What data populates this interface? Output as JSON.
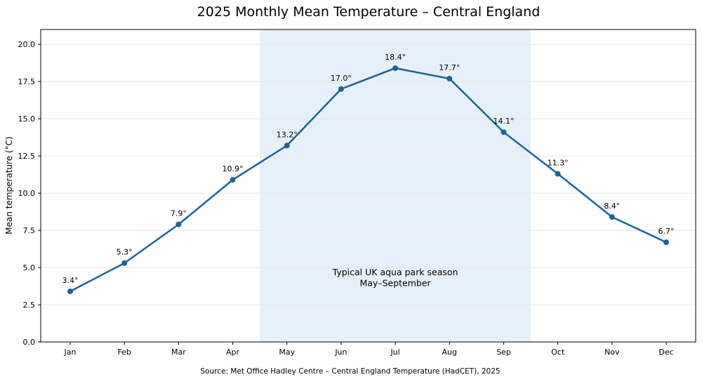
{
  "chart_data": {
    "type": "line",
    "title": "2025 Monthly Mean Temperature – Central England",
    "xlabel": "",
    "ylabel": "Mean temperature (°C)",
    "categories": [
      "Jan",
      "Feb",
      "Mar",
      "Apr",
      "May",
      "Jun",
      "Jul",
      "Aug",
      "Sep",
      "Oct",
      "Nov",
      "Dec"
    ],
    "values": [
      3.4,
      5.3,
      7.9,
      10.9,
      13.2,
      17.0,
      18.4,
      17.7,
      14.1,
      11.3,
      8.4,
      6.7
    ],
    "data_labels": [
      "3.4°",
      "5.3°",
      "7.9°",
      "10.9°",
      "13.2°",
      "17.0°",
      "18.4°",
      "17.7°",
      "14.1°",
      "11.3°",
      "8.4°",
      "6.7°"
    ],
    "ylim": [
      0,
      21
    ],
    "yticks": [
      0,
      2.5,
      5,
      7.5,
      10,
      12.5,
      15,
      17.5,
      20
    ],
    "ytick_labels": [
      "0.0",
      "2.5",
      "5.0",
      "7.5",
      "10.0",
      "12.5",
      "15.0",
      "17.5",
      "20.0"
    ],
    "grid": "horizontal",
    "line_color": "#1f6391",
    "highlight": {
      "from": "May",
      "to": "Sep",
      "color": "#e6f0f9",
      "label_line1": "Typical UK aqua park season",
      "label_line2": "May–September"
    },
    "source": "Source: Met Office Hadley Centre – Central England Temperature (HadCET), 2025"
  }
}
